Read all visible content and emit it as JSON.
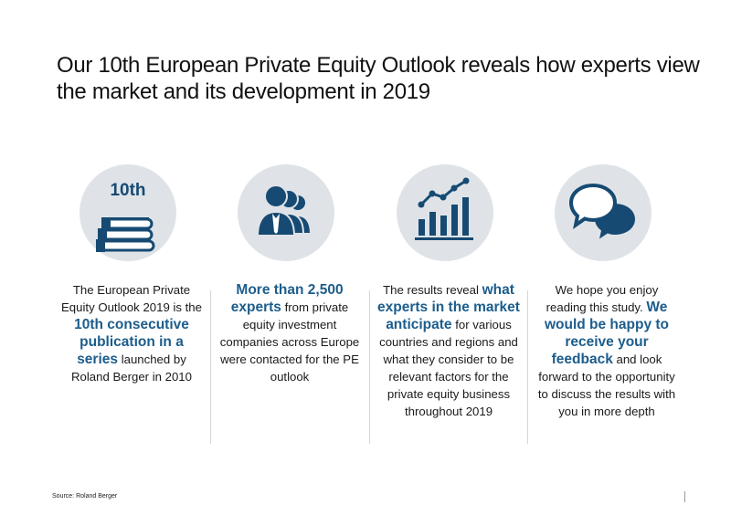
{
  "title": "Our 10th European Private Equity Outlook reveals how experts view the market and its development in 2019",
  "colors": {
    "accent": "#1c5d8c",
    "icon": "#164a72",
    "circle": "#dfe3e8"
  },
  "columns": [
    {
      "icon": "books-icon",
      "badge": "10th",
      "t1": "The European Private Equity Outlook 2019 is the",
      "h1": "10th consecutive publication in a series",
      "t2": "launched by Roland Berger in 2010"
    },
    {
      "icon": "people-icon",
      "h1": "More than 2,500 experts",
      "t1": "from private equity investment companies across Europe were contacted for the PE outlook"
    },
    {
      "icon": "bar-chart-trend-icon",
      "t1": "The results reveal",
      "h1": "what experts in the market anticipate",
      "t2": "for various countries and regions and what they consider to be relevant factors for the private equity business throughout 2019"
    },
    {
      "icon": "chat-bubbles-icon",
      "t1": "We hope you enjoy reading this study.",
      "h1": "We would be happy to receive your feedback",
      "t2": "and look forward to the opportunity to discuss the results with you in more depth"
    }
  ],
  "source": "Source: Roland Berger"
}
